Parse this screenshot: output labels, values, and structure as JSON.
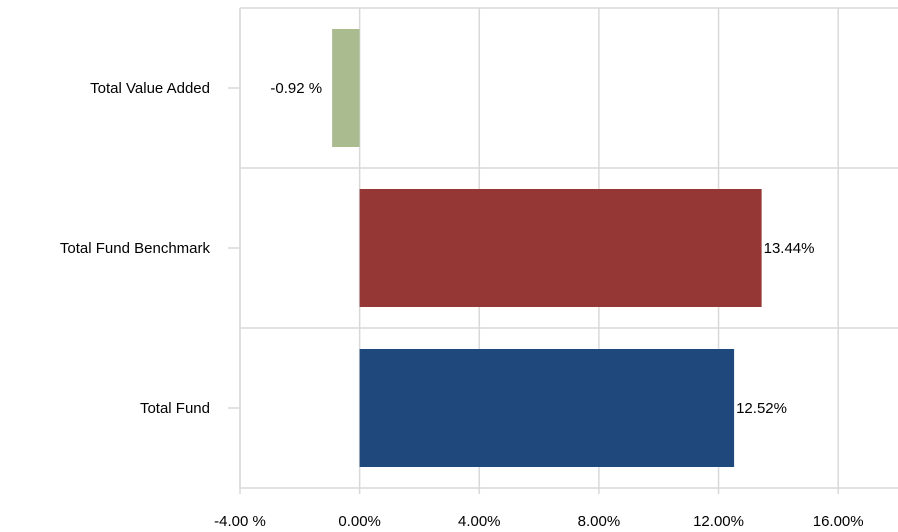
{
  "chart_data": {
    "type": "bar",
    "orientation": "horizontal",
    "title": "",
    "xlabel": "",
    "ylabel": "",
    "xlim": [
      -4,
      18
    ],
    "grid": true,
    "legend": "none",
    "x_ticks": [
      {
        "value": -4,
        "label": "-4.00 %"
      },
      {
        "value": 0,
        "label": "0.00%"
      },
      {
        "value": 4,
        "label": "4.00%"
      },
      {
        "value": 8,
        "label": "8.00%"
      },
      {
        "value": 12,
        "label": "12.00%"
      },
      {
        "value": 16,
        "label": "16.00%"
      }
    ],
    "categories": [
      "Total Value Added",
      "Total Fund Benchmark",
      "Total Fund"
    ],
    "values": [
      -0.92,
      13.44,
      12.52
    ],
    "data_labels": [
      "-0.92 %",
      "13.44%",
      "12.52%"
    ],
    "colors": [
      "#a9bb8f",
      "#953735",
      "#1f497d"
    ]
  }
}
